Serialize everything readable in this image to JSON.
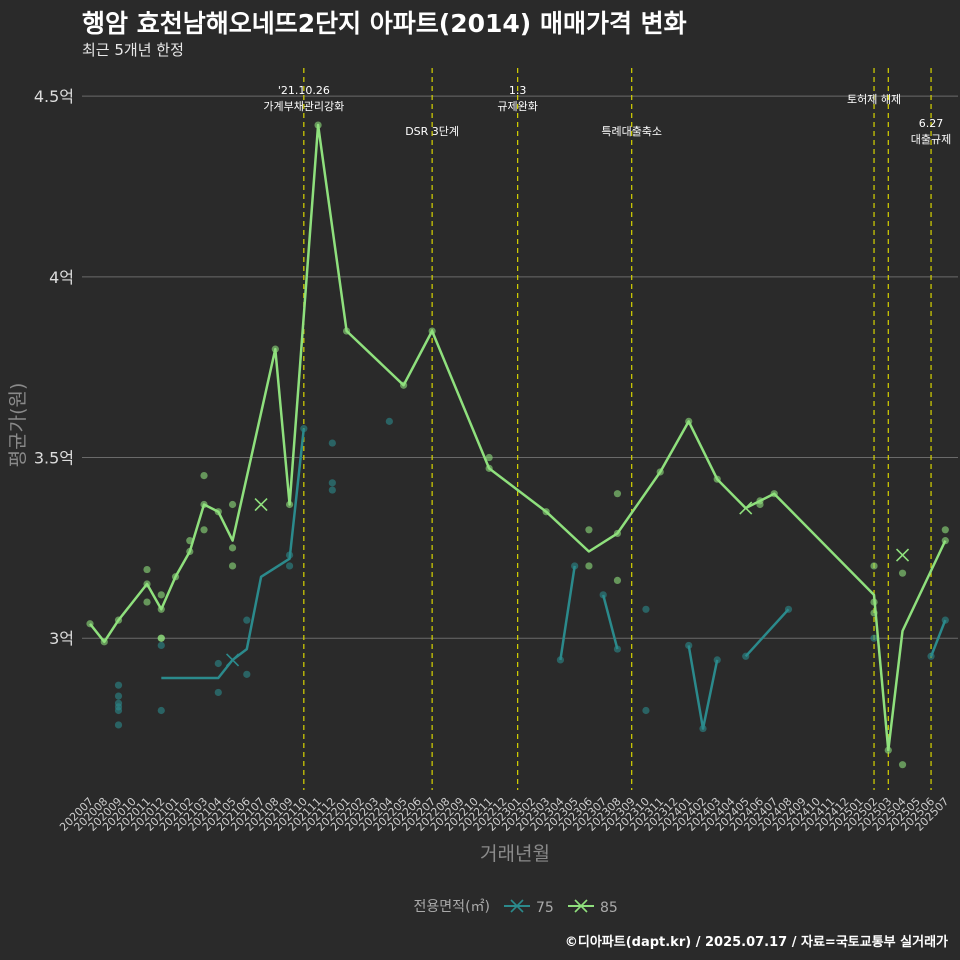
{
  "title": "행암 효천남해오네뜨2단지 아파트(2014) 매매가격 변화",
  "subtitle": "최근 5개년 한정",
  "caption": "©디아파트(dapt.kr) / 2025.07.17 / 자료=국토교통부 실거래가",
  "colors": {
    "background": "#2a2a2a",
    "grid": "#6a6a6a",
    "text": "#ffffff",
    "axis_text": "#bbbbbb",
    "axis_title": "#8a8a8a",
    "vline": "#d7d400",
    "series75": "#2b8a8c",
    "series85": "#8fe07d"
  },
  "chart_data": {
    "type": "line",
    "xlabel": "거래년월",
    "ylabel": "평균가(원)",
    "ylim": [
      2.58,
      4.6
    ],
    "yticks": [
      3.0,
      3.5,
      4.0,
      4.5
    ],
    "ytick_labels": [
      "3억",
      "3.5억",
      "4억",
      "4.5억"
    ],
    "x_categories": [
      "202007",
      "202008",
      "202009",
      "202010",
      "202011",
      "202012",
      "202101",
      "202102",
      "202103",
      "202104",
      "202105",
      "202106",
      "202107",
      "202108",
      "202109",
      "202110",
      "202111",
      "202112",
      "202201",
      "202202",
      "202203",
      "202204",
      "202205",
      "202206",
      "202207",
      "202208",
      "202209",
      "202210",
      "202211",
      "202212",
      "202301",
      "202302",
      "202303",
      "202304",
      "202305",
      "202306",
      "202307",
      "202308",
      "202309",
      "202310",
      "202311",
      "202312",
      "202401",
      "202402",
      "202403",
      "202404",
      "202405",
      "202406",
      "202407",
      "202408",
      "202409",
      "202410",
      "202411",
      "202412",
      "202501",
      "202502",
      "202503",
      "202504",
      "202505",
      "202506",
      "202507"
    ],
    "legend_title": "전용면적(㎡)",
    "legend_position": "bottom",
    "grid": true,
    "series": [
      {
        "name": "75",
        "color": "#2b8a8c",
        "line": [
          [
            "202012",
            2.89
          ],
          [
            "202104",
            2.89
          ],
          [
            "202105",
            2.94
          ],
          [
            "202106",
            2.97
          ],
          [
            "202107",
            3.17
          ],
          [
            "202109",
            3.22
          ],
          [
            "202110",
            3.58
          ],
          null,
          [
            "202304",
            2.94
          ],
          [
            "202305",
            3.2
          ],
          null,
          [
            "202307",
            3.12
          ],
          [
            "202308",
            2.97
          ],
          null,
          [
            "202401",
            2.98
          ],
          [
            "202402",
            2.75
          ],
          [
            "202403",
            2.94
          ],
          null,
          [
            "202405",
            2.95
          ],
          [
            "202408",
            3.08
          ],
          null,
          [
            "202502",
            3.0
          ],
          null,
          [
            "202506",
            2.95
          ],
          [
            "202507",
            3.05
          ]
        ],
        "points": [
          [
            "202009",
            2.87
          ],
          [
            "202009",
            2.84
          ],
          [
            "202009",
            2.82
          ],
          [
            "202009",
            2.81
          ],
          [
            "202009",
            2.8
          ],
          [
            "202009",
            2.76
          ],
          [
            "202012",
            2.98
          ],
          [
            "202012",
            2.8
          ],
          [
            "202104",
            2.93
          ],
          [
            "202104",
            2.85
          ],
          [
            "202106",
            3.05
          ],
          [
            "202106",
            2.9
          ],
          [
            "202109",
            3.2
          ],
          [
            "202109",
            3.23
          ],
          [
            "202110",
            3.58
          ],
          [
            "202112",
            3.54
          ],
          [
            "202112",
            3.43
          ],
          [
            "202112",
            3.41
          ],
          [
            "202204",
            3.6
          ],
          [
            "202304",
            2.94
          ],
          [
            "202305",
            3.2
          ],
          [
            "202307",
            3.12
          ],
          [
            "202308",
            2.97
          ],
          [
            "202310",
            3.08
          ],
          [
            "202310",
            2.8
          ],
          [
            "202401",
            2.98
          ],
          [
            "202402",
            2.75
          ],
          [
            "202403",
            2.94
          ],
          [
            "202405",
            2.95
          ],
          [
            "202408",
            3.08
          ],
          [
            "202502",
            3.0
          ],
          [
            "202506",
            2.95
          ],
          [
            "202507",
            3.05
          ]
        ],
        "crosses": [
          [
            "202105",
            2.94
          ]
        ]
      },
      {
        "name": "85",
        "color": "#8fe07d",
        "line": [
          [
            "202007",
            3.04
          ],
          [
            "202008",
            2.99
          ],
          [
            "202009",
            3.05
          ],
          [
            "202011",
            3.15
          ],
          [
            "202012",
            3.08
          ],
          [
            "202101",
            3.17
          ],
          [
            "202102",
            3.24
          ],
          [
            "202103",
            3.37
          ],
          [
            "202104",
            3.35
          ],
          [
            "202105",
            3.27
          ],
          [
            "202108",
            3.8
          ],
          [
            "202109",
            3.37
          ],
          [
            "202111",
            4.42
          ],
          [
            "202201",
            3.85
          ],
          [
            "202205",
            3.7
          ],
          [
            "202207",
            3.85
          ],
          [
            "202211",
            3.47
          ],
          [
            "202303",
            3.35
          ],
          [
            "202306",
            3.24
          ],
          [
            "202308",
            3.29
          ],
          [
            "202311",
            3.46
          ],
          [
            "202401",
            3.6
          ],
          [
            "202403",
            3.44
          ],
          [
            "202405",
            3.36
          ],
          [
            "202406",
            3.38
          ],
          [
            "202407",
            3.4
          ],
          [
            "202502",
            3.12
          ],
          [
            "202503",
            2.69
          ],
          [
            "202504",
            3.02
          ],
          [
            "202507",
            3.27
          ]
        ],
        "points": [
          [
            "202007",
            3.04
          ],
          [
            "202008",
            2.99
          ],
          [
            "202009",
            3.05
          ],
          [
            "202011",
            3.19
          ],
          [
            "202011",
            3.1
          ],
          [
            "202011",
            3.15
          ],
          [
            "202012",
            3.12
          ],
          [
            "202012",
            3.08
          ],
          [
            "202012",
            3.0
          ],
          [
            "202012",
            3.0
          ],
          [
            "202101",
            3.17
          ],
          [
            "202102",
            3.24
          ],
          [
            "202102",
            3.27
          ],
          [
            "202103",
            3.45
          ],
          [
            "202103",
            3.37
          ],
          [
            "202103",
            3.3
          ],
          [
            "202104",
            3.35
          ],
          [
            "202105",
            3.37
          ],
          [
            "202105",
            3.25
          ],
          [
            "202105",
            3.2
          ],
          [
            "202108",
            3.8
          ],
          [
            "202109",
            3.37
          ],
          [
            "202111",
            4.42
          ],
          [
            "202201",
            3.85
          ],
          [
            "202205",
            3.7
          ],
          [
            "202207",
            3.85
          ],
          [
            "202211",
            3.5
          ],
          [
            "202211",
            3.47
          ],
          [
            "202303",
            3.35
          ],
          [
            "202306",
            3.3
          ],
          [
            "202306",
            3.2
          ],
          [
            "202308",
            3.4
          ],
          [
            "202308",
            3.16
          ],
          [
            "202308",
            3.29
          ],
          [
            "202311",
            3.46
          ],
          [
            "202401",
            3.6
          ],
          [
            "202403",
            3.44
          ],
          [
            "202406",
            3.37
          ],
          [
            "202406",
            3.38
          ],
          [
            "202407",
            3.4
          ],
          [
            "202502",
            3.2
          ],
          [
            "202502",
            3.1
          ],
          [
            "202502",
            3.07
          ],
          [
            "202503",
            2.69
          ],
          [
            "202504",
            2.65
          ],
          [
            "202504",
            3.18
          ],
          [
            "202507",
            3.3
          ],
          [
            "202507",
            3.27
          ]
        ],
        "crosses": [
          [
            "202107",
            3.37
          ],
          [
            "202405",
            3.36
          ],
          [
            "202504",
            3.23
          ]
        ]
      }
    ],
    "vlines": [
      {
        "x": "202110",
        "label": "'21.10.26\n가계부채관리강화",
        "row": 0
      },
      {
        "x": "202207",
        "label": "DSR 3단계",
        "row": 1
      },
      {
        "x": "202301",
        "label": "1.3\n규제완화",
        "row": 0
      },
      {
        "x": "202309",
        "label": "특례대출축소",
        "row": 1
      },
      {
        "x": "202502",
        "label": "토허제 해제",
        "row": 0
      },
      {
        "x": "202503",
        "label": "",
        "row": 0
      },
      {
        "x": "202506",
        "label": "6.27\n대출규제",
        "row": 1
      }
    ]
  }
}
